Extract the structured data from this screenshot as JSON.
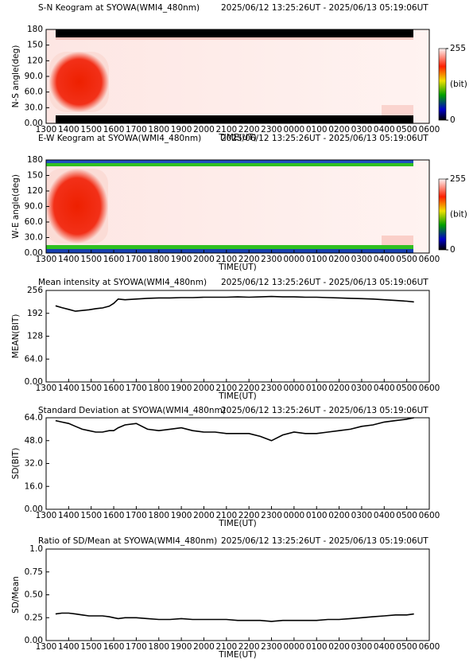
{
  "chart_data": [
    {
      "type": "keogram",
      "title": "S-N Keogram at SYOWA(WMI4_480nm)",
      "subtitle": "2025/06/12 13:25:26UT - 2025/06/13 05:19:06UT",
      "xlabel": "TIME(UT)",
      "ylabel": "N-S angle(deg)",
      "xlim": [
        13,
        30
      ],
      "xticks": [
        {
          "value": 13,
          "label": "1300"
        },
        {
          "value": 14,
          "label": "1400"
        },
        {
          "value": 15,
          "label": "1500"
        },
        {
          "value": 16,
          "label": "1600"
        },
        {
          "value": 17,
          "label": "1700"
        },
        {
          "value": 18,
          "label": "1800"
        },
        {
          "value": 19,
          "label": "1900"
        },
        {
          "value": 20,
          "label": "2000"
        },
        {
          "value": 21,
          "label": "2100"
        },
        {
          "value": 22,
          "label": "2200"
        },
        {
          "value": 23,
          "label": "2300"
        },
        {
          "value": 24,
          "label": "0000"
        },
        {
          "value": 25,
          "label": "0100"
        },
        {
          "value": 26,
          "label": "0200"
        },
        {
          "value": 27,
          "label": "0300"
        },
        {
          "value": 28,
          "label": "0400"
        },
        {
          "value": 29,
          "label": "0500"
        },
        {
          "value": 30,
          "label": "0600"
        }
      ],
      "ylim": [
        0,
        180
      ],
      "yticks": [
        {
          "value": 0,
          "label": "0.00"
        },
        {
          "value": 30,
          "label": "30.0"
        },
        {
          "value": 60,
          "label": "60.0"
        },
        {
          "value": 90,
          "label": "90.0"
        },
        120,
        150,
        180
      ],
      "colorbar": {
        "clim": [
          0,
          255
        ],
        "ticks": [
          255,
          0
        ],
        "label": "(bit)"
      }
    },
    {
      "type": "keogram",
      "title": "E-W Keogram at SYOWA(WMI4_480nm)",
      "subtitle": "2025/06/12 13:25:26UT - 2025/06/13 05:19:06UT",
      "xlabel": "TIME(UT)",
      "ylabel": "W-E angle(deg)",
      "xlim": [
        13,
        30
      ],
      "xticks": [
        {
          "value": 13,
          "label": "1300"
        },
        {
          "value": 14,
          "label": "1400"
        },
        {
          "value": 15,
          "label": "1500"
        },
        {
          "value": 16,
          "label": "1600"
        },
        {
          "value": 17,
          "label": "1700"
        },
        {
          "value": 18,
          "label": "1800"
        },
        {
          "value": 19,
          "label": "1900"
        },
        {
          "value": 20,
          "label": "2000"
        },
        {
          "value": 21,
          "label": "2100"
        },
        {
          "value": 22,
          "label": "2200"
        },
        {
          "value": 23,
          "label": "2300"
        },
        {
          "value": 24,
          "label": "0000"
        },
        {
          "value": 25,
          "label": "0100"
        },
        {
          "value": 26,
          "label": "0200"
        },
        {
          "value": 27,
          "label": "0300"
        },
        {
          "value": 28,
          "label": "0400"
        },
        {
          "value": 29,
          "label": "0500"
        },
        {
          "value": 30,
          "label": "0600"
        }
      ],
      "ylim": [
        0,
        180
      ],
      "yticks": [
        {
          "value": 0,
          "label": "0.00"
        },
        {
          "value": 30,
          "label": "30.0"
        },
        {
          "value": 60,
          "label": "60.0"
        },
        {
          "value": 90,
          "label": "90.0"
        },
        120,
        150,
        180
      ],
      "colorbar": {
        "clim": [
          0,
          255
        ],
        "ticks": [
          255,
          0
        ],
        "label": "(bit)"
      }
    },
    {
      "type": "line",
      "title": "Mean intensity at SYOWA(WMI4_480nm)",
      "subtitle": "2025/06/12 13:25:26UT - 2025/06/13 05:19:06UT",
      "xlabel": "TIME(UT)",
      "ylabel": "MEAN(BIT)",
      "color": "#000000",
      "xlim": [
        13,
        30
      ],
      "xticks": [
        {
          "value": 13,
          "label": "1300"
        },
        {
          "value": 14,
          "label": "1400"
        },
        {
          "value": 15,
          "label": "1500"
        },
        {
          "value": 16,
          "label": "1600"
        },
        {
          "value": 17,
          "label": "1700"
        },
        {
          "value": 18,
          "label": "1800"
        },
        {
          "value": 19,
          "label": "1900"
        },
        {
          "value": 20,
          "label": "2000"
        },
        {
          "value": 21,
          "label": "2100"
        },
        {
          "value": 22,
          "label": "2200"
        },
        {
          "value": 23,
          "label": "2300"
        },
        {
          "value": 24,
          "label": "0000"
        },
        {
          "value": 25,
          "label": "0100"
        },
        {
          "value": 26,
          "label": "0200"
        },
        {
          "value": 27,
          "label": "0300"
        },
        {
          "value": 28,
          "label": "0400"
        },
        {
          "value": 29,
          "label": "0500"
        },
        {
          "value": 30,
          "label": "0600"
        }
      ],
      "ylim": [
        0,
        256
      ],
      "yticks": [
        {
          "value": 0,
          "label": "0.00"
        },
        {
          "value": 64,
          "label": "64.0"
        },
        128,
        192,
        256
      ],
      "x": [
        13.42,
        13.7,
        14,
        14.3,
        14.6,
        14.9,
        15.2,
        15.5,
        15.8,
        16.0,
        16.2,
        16.5,
        17,
        17.5,
        18,
        18.5,
        19,
        19.5,
        20,
        20.5,
        21,
        21.5,
        22,
        22.5,
        23,
        23.5,
        24,
        24.5,
        25,
        25.5,
        26,
        26.5,
        27,
        27.5,
        28,
        28.5,
        29,
        29.32
      ],
      "values": [
        213,
        208,
        203,
        198,
        200,
        202,
        205,
        207,
        212,
        220,
        232,
        230,
        232,
        234,
        235,
        235,
        236,
        236,
        237,
        237,
        237,
        238,
        237,
        238,
        239,
        238,
        238,
        237,
        237,
        236,
        235,
        234,
        233,
        232,
        230,
        228,
        226,
        224
      ]
    },
    {
      "type": "line",
      "title": "Standard Deviation at SYOWA(WMI4_480nm)",
      "subtitle": "2025/06/12 13:25:26UT - 2025/06/13 05:19:06UT",
      "xlabel": "TIME(UT)",
      "ylabel": "SD(BIT)",
      "color": "#000000",
      "xlim": [
        13,
        30
      ],
      "xticks": [
        {
          "value": 13,
          "label": "1300"
        },
        {
          "value": 14,
          "label": "1400"
        },
        {
          "value": 15,
          "label": "1500"
        },
        {
          "value": 16,
          "label": "1600"
        },
        {
          "value": 17,
          "label": "1700"
        },
        {
          "value": 18,
          "label": "1800"
        },
        {
          "value": 19,
          "label": "1900"
        },
        {
          "value": 20,
          "label": "2000"
        },
        {
          "value": 21,
          "label": "2100"
        },
        {
          "value": 22,
          "label": "2200"
        },
        {
          "value": 23,
          "label": "2300"
        },
        {
          "value": 24,
          "label": "0000"
        },
        {
          "value": 25,
          "label": "0100"
        },
        {
          "value": 26,
          "label": "0200"
        },
        {
          "value": 27,
          "label": "0300"
        },
        {
          "value": 28,
          "label": "0400"
        },
        {
          "value": 29,
          "label": "0500"
        },
        {
          "value": 30,
          "label": "0600"
        }
      ],
      "ylim": [
        0,
        64
      ],
      "yticks": [
        {
          "value": 0,
          "label": "0.00"
        },
        {
          "value": 16,
          "label": "16.0"
        },
        {
          "value": 32,
          "label": "32.0"
        },
        {
          "value": 48,
          "label": "48.0"
        },
        {
          "value": 64,
          "label": "64.0"
        }
      ],
      "x": [
        13.42,
        13.7,
        14,
        14.3,
        14.6,
        14.9,
        15.2,
        15.5,
        15.8,
        16.0,
        16.2,
        16.5,
        17,
        17.5,
        18,
        18.5,
        19,
        19.5,
        20,
        20.5,
        21,
        21.5,
        22,
        22.5,
        23,
        23.5,
        24,
        24.5,
        25,
        25.5,
        26,
        26.5,
        27,
        27.5,
        28,
        28.5,
        29,
        29.32
      ],
      "values": [
        62,
        61,
        60,
        58,
        56,
        55,
        54,
        54,
        55,
        55,
        57,
        59,
        60,
        56,
        55,
        56,
        57,
        55,
        54,
        54,
        53,
        53,
        53,
        51,
        48,
        52,
        54,
        53,
        53,
        54,
        55,
        56,
        58,
        59,
        61,
        62,
        63,
        64
      ]
    },
    {
      "type": "line",
      "title": "Ratio of SD/Mean at SYOWA(WMI4_480nm)",
      "subtitle": "2025/06/12 13:25:26UT - 2025/06/13 05:19:06UT",
      "xlabel": "TIME(UT)",
      "ylabel": "SD/Mean",
      "color": "#000000",
      "xlim": [
        13,
        30
      ],
      "xticks": [
        {
          "value": 13,
          "label": "1300"
        },
        {
          "value": 14,
          "label": "1400"
        },
        {
          "value": 15,
          "label": "1500"
        },
        {
          "value": 16,
          "label": "1600"
        },
        {
          "value": 17,
          "label": "1700"
        },
        {
          "value": 18,
          "label": "1800"
        },
        {
          "value": 19,
          "label": "1900"
        },
        {
          "value": 20,
          "label": "2000"
        },
        {
          "value": 21,
          "label": "2100"
        },
        {
          "value": 22,
          "label": "2200"
        },
        {
          "value": 23,
          "label": "2300"
        },
        {
          "value": 24,
          "label": "0000"
        },
        {
          "value": 25,
          "label": "0100"
        },
        {
          "value": 26,
          "label": "0200"
        },
        {
          "value": 27,
          "label": "0300"
        },
        {
          "value": 28,
          "label": "0400"
        },
        {
          "value": 29,
          "label": "0500"
        },
        {
          "value": 30,
          "label": "0600"
        }
      ],
      "ylim": [
        0,
        1
      ],
      "yticks": [
        {
          "value": 0,
          "label": "0.00"
        },
        0.25,
        {
          "value": 0.5,
          "label": "0.50"
        },
        0.75,
        {
          "value": 1,
          "label": "1.0"
        }
      ],
      "x": [
        13.42,
        13.7,
        14,
        14.3,
        14.6,
        14.9,
        15.2,
        15.5,
        15.8,
        16.0,
        16.2,
        16.5,
        17,
        17.5,
        18,
        18.5,
        19,
        19.5,
        20,
        20.5,
        21,
        21.5,
        22,
        22.5,
        23,
        23.5,
        24,
        24.5,
        25,
        25.5,
        26,
        26.5,
        27,
        27.5,
        28,
        28.5,
        29,
        29.32
      ],
      "values": [
        0.29,
        0.3,
        0.3,
        0.29,
        0.28,
        0.27,
        0.27,
        0.27,
        0.26,
        0.25,
        0.24,
        0.25,
        0.25,
        0.24,
        0.23,
        0.23,
        0.24,
        0.23,
        0.23,
        0.23,
        0.23,
        0.22,
        0.22,
        0.22,
        0.21,
        0.22,
        0.22,
        0.22,
        0.22,
        0.23,
        0.23,
        0.24,
        0.25,
        0.26,
        0.27,
        0.28,
        0.28,
        0.29
      ]
    }
  ]
}
